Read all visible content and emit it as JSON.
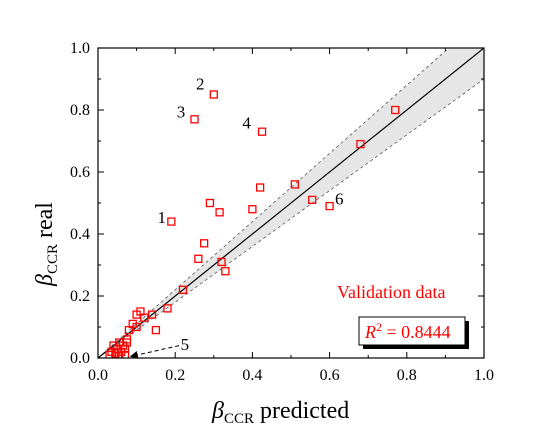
{
  "chart_data": {
    "type": "scatter",
    "xlabel": {
      "symbol": "β",
      "subscript": "CCR",
      "suffix": " predicted"
    },
    "ylabel": {
      "symbol": "β",
      "subscript": "CCR",
      "suffix": " real"
    },
    "xlim": [
      0,
      1.0
    ],
    "ylim": [
      0,
      1.0
    ],
    "x_ticks": [
      "0.0",
      "0.2",
      "0.4",
      "0.6",
      "0.8",
      "1.0"
    ],
    "y_ticks": [
      "0.0",
      "0.2",
      "0.4",
      "0.6",
      "0.8",
      "1.0"
    ],
    "grid": false,
    "legend": {
      "text": "Validation data",
      "placement": "lower-right"
    },
    "r2_box": {
      "prefix": "R",
      "sup": "2",
      "value": " = 0.8444"
    },
    "reference_line": {
      "type": "y=x"
    },
    "band": {
      "lower_slope": 0.9,
      "upper_slope": 1.1
    },
    "series": [
      {
        "marker": "open-square",
        "color": "#ff0000",
        "points": [
          {
            "x": 0.03,
            "y": 0.01
          },
          {
            "x": 0.035,
            "y": 0.02
          },
          {
            "x": 0.04,
            "y": 0.04
          },
          {
            "x": 0.045,
            "y": 0.015
          },
          {
            "x": 0.05,
            "y": 0.03
          },
          {
            "x": 0.055,
            "y": 0.05
          },
          {
            "x": 0.055,
            "y": 0.005
          },
          {
            "x": 0.06,
            "y": 0.02
          },
          {
            "x": 0.065,
            "y": 0.04
          },
          {
            "x": 0.07,
            "y": 0.03
          },
          {
            "x": 0.07,
            "y": 0.01
          },
          {
            "x": 0.075,
            "y": 0.06
          },
          {
            "x": 0.075,
            "y": 0.05
          },
          {
            "x": 0.08,
            "y": 0.09
          },
          {
            "x": 0.09,
            "y": 0.11
          },
          {
            "x": 0.1,
            "y": 0.1
          },
          {
            "x": 0.1,
            "y": 0.14
          },
          {
            "x": 0.11,
            "y": 0.15
          },
          {
            "x": 0.12,
            "y": 0.13
          },
          {
            "x": 0.14,
            "y": 0.14
          },
          {
            "x": 0.15,
            "y": 0.09
          },
          {
            "x": 0.18,
            "y": 0.16
          },
          {
            "x": 0.22,
            "y": 0.22
          },
          {
            "x": 0.26,
            "y": 0.32
          },
          {
            "x": 0.275,
            "y": 0.37
          },
          {
            "x": 0.32,
            "y": 0.31
          },
          {
            "x": 0.33,
            "y": 0.28
          },
          {
            "x": 0.19,
            "y": 0.44
          },
          {
            "x": 0.29,
            "y": 0.5
          },
          {
            "x": 0.315,
            "y": 0.47
          },
          {
            "x": 0.4,
            "y": 0.48
          },
          {
            "x": 0.42,
            "y": 0.55
          },
          {
            "x": 0.51,
            "y": 0.56
          },
          {
            "x": 0.555,
            "y": 0.51
          },
          {
            "x": 0.6,
            "y": 0.49
          },
          {
            "x": 0.68,
            "y": 0.69
          },
          {
            "x": 0.77,
            "y": 0.8
          },
          {
            "x": 0.25,
            "y": 0.77
          },
          {
            "x": 0.3,
            "y": 0.85
          },
          {
            "x": 0.425,
            "y": 0.73
          }
        ]
      }
    ],
    "annotations": [
      {
        "text": "1",
        "x": 0.165,
        "y": 0.455
      },
      {
        "text": "2",
        "x": 0.265,
        "y": 0.885
      },
      {
        "text": "3",
        "x": 0.215,
        "y": 0.795
      },
      {
        "text": "4",
        "x": 0.385,
        "y": 0.76
      },
      {
        "text": "5",
        "x": 0.225,
        "y": 0.045
      },
      {
        "text": "6",
        "x": 0.625,
        "y": 0.515
      }
    ],
    "arrow_5": {
      "from": {
        "x": 0.21,
        "y": 0.04
      },
      "to": {
        "x": 0.085,
        "y": 0.005
      }
    }
  }
}
